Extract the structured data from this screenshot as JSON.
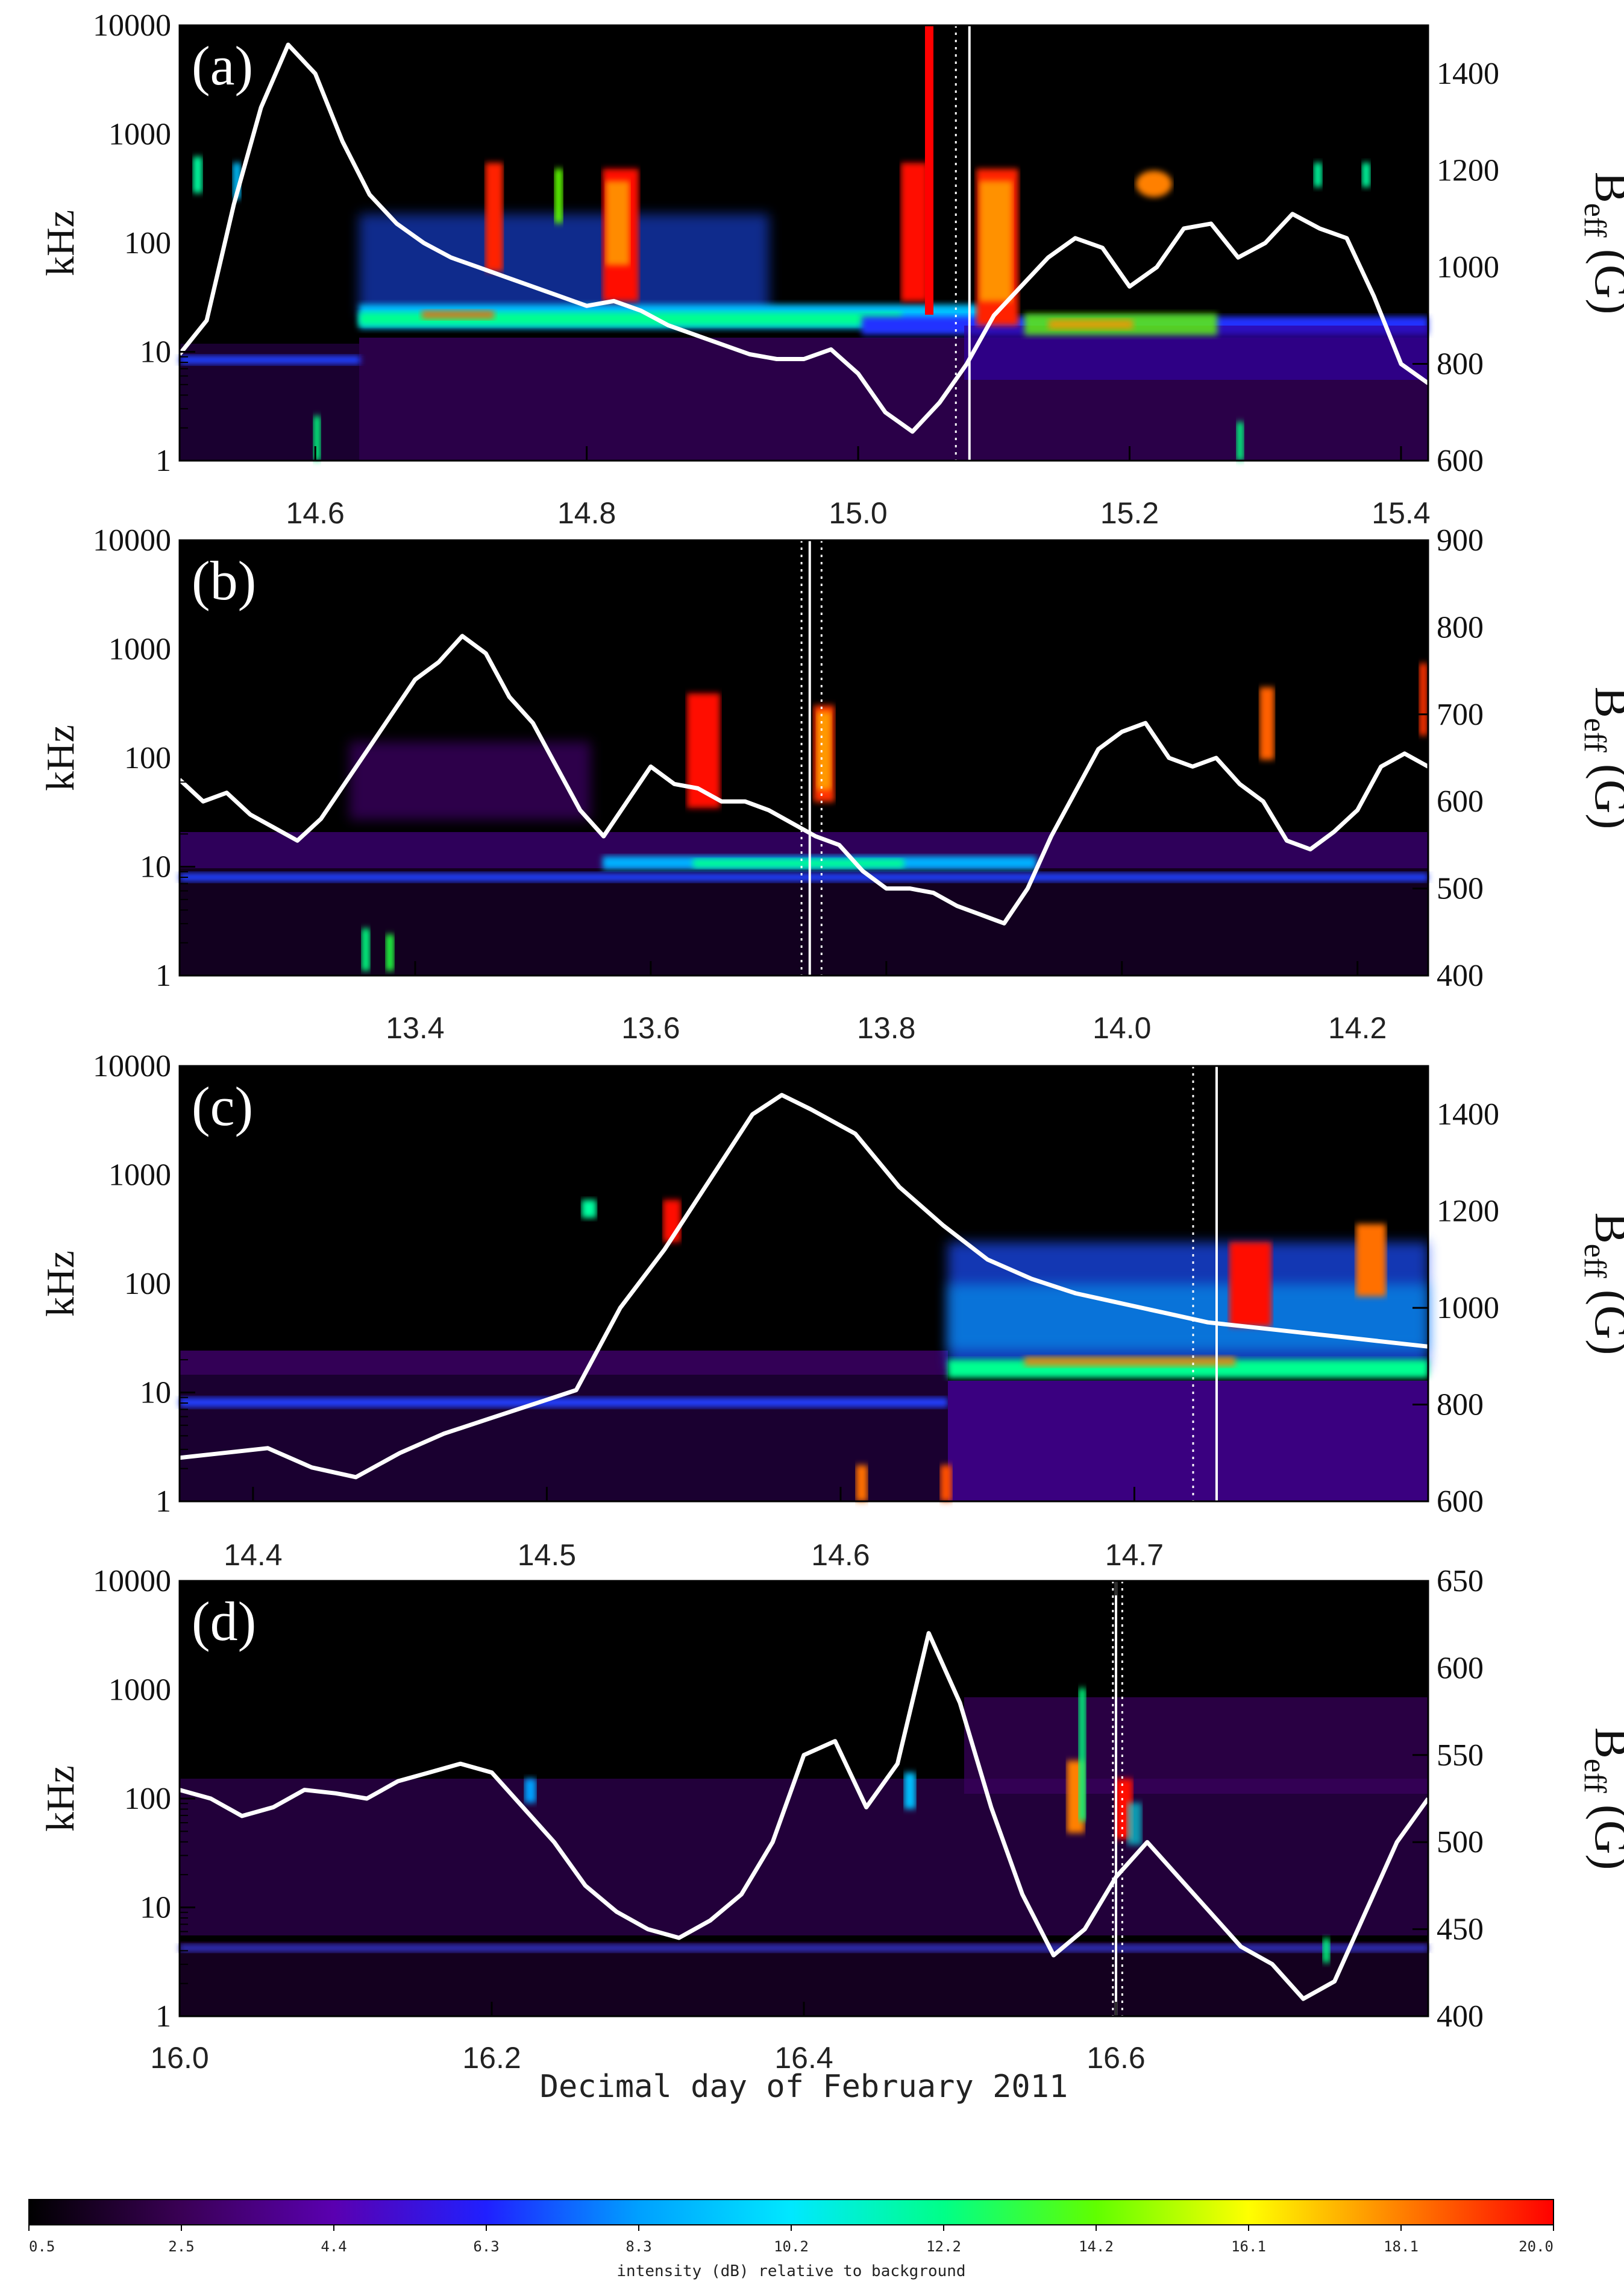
{
  "figure": {
    "x_axis_title": "Decimal day of February 2011",
    "left_axis_label": "kHz",
    "right_axis_label_main": "B",
    "right_axis_label_sub": "eff",
    "right_axis_label_unit": " (G)",
    "colorbar": {
      "title": "intensity (dB) relative to background",
      "tick_labels": [
        "0.5",
        "2.5",
        "4.4",
        "6.3",
        "8.3",
        "10.2",
        "12.2",
        "14.2",
        "16.1",
        "18.1",
        "20.0"
      ],
      "range": [
        0.5,
        20.0
      ],
      "colors": [
        "#000000",
        "#3a0055",
        "#5a00b0",
        "#2020ff",
        "#00a0ff",
        "#00e8ff",
        "#00ff88",
        "#60ff00",
        "#ffff00",
        "#ff8000",
        "#ff0000"
      ]
    }
  },
  "chart_data": [
    {
      "type": "heatmap",
      "panel_label": "(a)",
      "title": "",
      "xlabel": "",
      "ylabel": "kHz",
      "y2label": "Beff (G)",
      "xlim": [
        14.5,
        15.42
      ],
      "x_ticks": [
        "14.6",
        "14.8",
        "15.0",
        "15.2",
        "15.4"
      ],
      "ylim_khz": [
        1,
        10000
      ],
      "y_scale": "log",
      "y_ticks": [
        "1",
        "10",
        "100",
        "1000",
        "10000"
      ],
      "y2lim": [
        600,
        1500
      ],
      "y2_ticks": [
        "600",
        "800",
        "1000",
        "1200",
        "1400"
      ],
      "markers_solid": [
        15.082
      ],
      "markers_dotted": [
        15.072
      ],
      "series": [
        {
          "x": [
            14.5,
            14.52,
            14.54,
            14.56,
            14.58,
            14.6,
            14.62,
            14.64,
            14.66,
            14.68,
            14.7,
            14.72,
            14.74,
            14.76,
            14.78,
            14.8,
            14.82,
            14.84,
            14.86,
            14.88,
            14.9,
            14.92,
            14.94,
            14.96,
            14.98,
            15.0,
            15.02,
            15.04,
            15.06,
            15.08,
            15.1,
            15.12,
            15.14,
            15.16,
            15.18,
            15.2,
            15.22,
            15.24,
            15.26,
            15.28,
            15.3,
            15.32,
            15.34,
            15.36,
            15.38,
            15.4,
            15.42
          ],
          "values": [
            820,
            890,
            1130,
            1330,
            1460,
            1400,
            1260,
            1150,
            1090,
            1050,
            1020,
            1000,
            980,
            960,
            940,
            920,
            930,
            910,
            880,
            860,
            840,
            820,
            810,
            810,
            830,
            780,
            700,
            660,
            720,
            800,
            900,
            960,
            1020,
            1060,
            1040,
            960,
            1000,
            1080,
            1090,
            1020,
            1050,
            1110,
            1080,
            1060,
            940,
            800,
            760
          ]
        }
      ]
    },
    {
      "type": "heatmap",
      "panel_label": "(b)",
      "title": "",
      "xlabel": "",
      "ylabel": "kHz",
      "y2label": "Beff (G)",
      "xlim": [
        13.2,
        14.26
      ],
      "x_ticks": [
        "13.4",
        "13.6",
        "13.8",
        "14.0",
        "14.2"
      ],
      "ylim_khz": [
        1,
        10000
      ],
      "y_scale": "log",
      "y_ticks": [
        "1",
        "10",
        "100",
        "1000",
        "10000"
      ],
      "y2lim": [
        400,
        900
      ],
      "y2_ticks": [
        "400",
        "500",
        "600",
        "700",
        "800",
        "900"
      ],
      "markers_solid": [
        13.735
      ],
      "markers_dotted": [
        13.728,
        13.745
      ],
      "series": [
        {
          "x": [
            13.2,
            13.22,
            13.24,
            13.26,
            13.28,
            13.3,
            13.32,
            13.34,
            13.36,
            13.38,
            13.4,
            13.42,
            13.44,
            13.46,
            13.48,
            13.5,
            13.52,
            13.54,
            13.56,
            13.58,
            13.6,
            13.62,
            13.64,
            13.66,
            13.68,
            13.7,
            13.72,
            13.74,
            13.76,
            13.78,
            13.8,
            13.82,
            13.84,
            13.86,
            13.88,
            13.9,
            13.92,
            13.94,
            13.96,
            13.98,
            14.0,
            14.02,
            14.04,
            14.06,
            14.08,
            14.1,
            14.12,
            14.14,
            14.16,
            14.18,
            14.2,
            14.22,
            14.24,
            14.26
          ],
          "values": [
            625,
            600,
            610,
            585,
            570,
            555,
            580,
            620,
            660,
            700,
            740,
            760,
            790,
            770,
            720,
            690,
            640,
            590,
            560,
            600,
            640,
            620,
            615,
            600,
            600,
            590,
            575,
            560,
            550,
            520,
            500,
            500,
            495,
            480,
            470,
            460,
            500,
            560,
            610,
            660,
            680,
            690,
            650,
            640,
            650,
            620,
            600,
            555,
            545,
            565,
            590,
            640,
            655,
            640
          ]
        }
      ]
    },
    {
      "type": "heatmap",
      "panel_label": "(c)",
      "title": "",
      "xlabel": "",
      "ylabel": "kHz",
      "y2label": "Beff (G)",
      "xlim": [
        14.375,
        14.8
      ],
      "x_ticks": [
        "14.4",
        "14.5",
        "14.6",
        "14.7"
      ],
      "ylim_khz": [
        1,
        10000
      ],
      "y_scale": "log",
      "y_ticks": [
        "1",
        "10",
        "100",
        "1000",
        "10000"
      ],
      "y2lim": [
        600,
        1500
      ],
      "y2_ticks": [
        "600",
        "800",
        "1000",
        "1200",
        "1400"
      ],
      "markers_solid": [
        14.728
      ],
      "markers_dotted": [
        14.72
      ],
      "series": [
        {
          "x": [
            14.375,
            14.39,
            14.405,
            14.42,
            14.435,
            14.45,
            14.465,
            14.48,
            14.495,
            14.51,
            14.525,
            14.54,
            14.555,
            14.57,
            14.58,
            14.59,
            14.605,
            14.62,
            14.635,
            14.65,
            14.665,
            14.68,
            14.695,
            14.71,
            14.725,
            14.74,
            14.755,
            14.77,
            14.785,
            14.8
          ],
          "values": [
            690,
            700,
            710,
            670,
            650,
            700,
            740,
            770,
            800,
            830,
            1000,
            1120,
            1260,
            1400,
            1440,
            1410,
            1360,
            1250,
            1170,
            1100,
            1060,
            1030,
            1010,
            990,
            970,
            960,
            950,
            940,
            930,
            920
          ]
        }
      ]
    },
    {
      "type": "heatmap",
      "panel_label": "(d)",
      "title": "",
      "xlabel": "Decimal day of February 2011",
      "ylabel": "kHz",
      "y2label": "Beff (G)",
      "xlim": [
        16.0,
        16.8
      ],
      "x_ticks": [
        "16.0",
        "16.2",
        "16.4",
        "16.6"
      ],
      "ylim_khz": [
        1,
        10000
      ],
      "y_scale": "log",
      "y_ticks": [
        "1",
        "10",
        "100",
        "1000",
        "10000"
      ],
      "y2lim": [
        400,
        650
      ],
      "y2_ticks": [
        "400",
        "450",
        "500",
        "550",
        "600",
        "650"
      ],
      "markers_solid": [
        16.6
      ],
      "markers_dotted": [
        16.598,
        16.604
      ],
      "series": [
        {
          "x": [
            16.0,
            16.02,
            16.04,
            16.06,
            16.08,
            16.1,
            16.12,
            16.14,
            16.16,
            16.18,
            16.2,
            16.22,
            16.24,
            16.26,
            16.28,
            16.3,
            16.32,
            16.34,
            16.36,
            16.38,
            16.4,
            16.42,
            16.44,
            16.46,
            16.48,
            16.5,
            16.52,
            16.54,
            16.56,
            16.58,
            16.6,
            16.62,
            16.64,
            16.66,
            16.68,
            16.7,
            16.72,
            16.74,
            16.76,
            16.78,
            16.8
          ],
          "values": [
            530,
            525,
            515,
            520,
            530,
            528,
            525,
            535,
            540,
            545,
            540,
            520,
            500,
            475,
            460,
            450,
            445,
            455,
            470,
            500,
            550,
            558,
            520,
            545,
            620,
            580,
            520,
            470,
            435,
            450,
            480,
            500,
            480,
            460,
            440,
            430,
            410,
            420,
            460,
            500,
            525
          ]
        }
      ]
    }
  ]
}
